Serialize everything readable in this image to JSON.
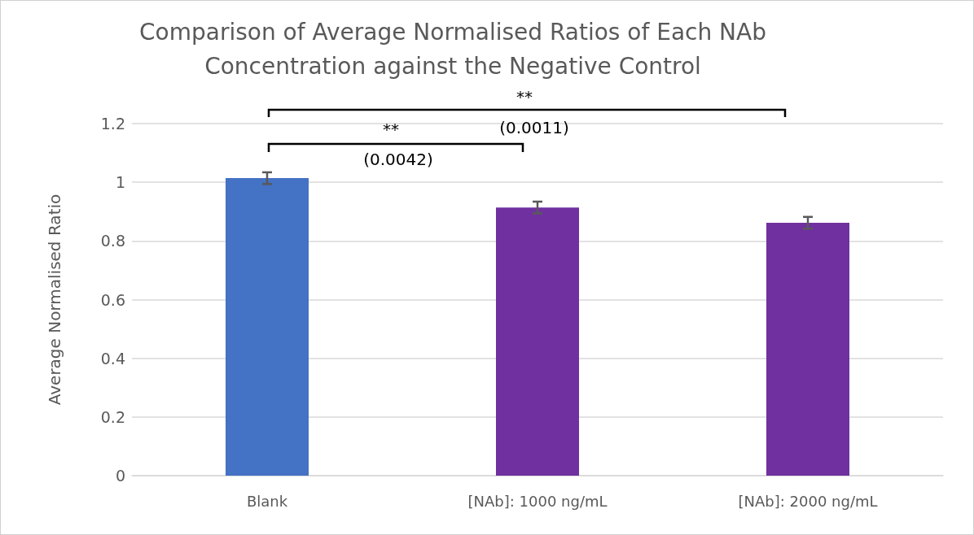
{
  "chart_data": {
    "type": "bar",
    "title": "Comparison of Average Normalised Ratios of Each NAb\nConcentration against the Negative Control",
    "ylabel": "Average Normalised Ratio",
    "categories": [
      "Blank",
      "[NAb]: 1000 ng/mL",
      "[NAb]: 2000 ng/mL"
    ],
    "values": [
      1.014,
      0.914,
      0.862
    ],
    "colors": [
      "#4472c4",
      "#7030a0",
      "#7030a0"
    ],
    "errors": [
      0.02,
      0.02,
      0.02
    ],
    "ylim": [
      0,
      1.2
    ],
    "yticks": [
      0,
      0.2,
      0.4,
      0.6,
      0.8,
      1,
      1.2
    ],
    "grid": "y",
    "annotations": [
      "**",
      "(0.0042)",
      "**",
      "(0.0011)"
    ]
  }
}
